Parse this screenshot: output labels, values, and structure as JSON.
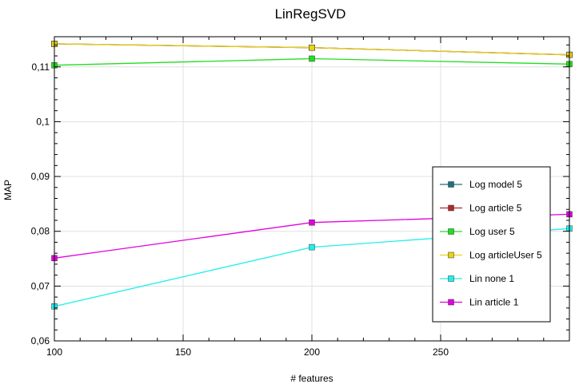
{
  "chart_data": {
    "type": "line",
    "title": "LinRegSVD",
    "xlabel": "# features",
    "ylabel": "MAP",
    "xlim": [
      100,
      300
    ],
    "ylim": [
      0.06,
      0.1155
    ],
    "x_ticks": [
      100,
      150,
      200,
      250
    ],
    "x_tick_labels": [
      "100",
      "150",
      "200",
      "250"
    ],
    "y_ticks": [
      0.06,
      0.07,
      0.08,
      0.09,
      0.1,
      0.11
    ],
    "y_tick_labels": [
      "0,06",
      "0,07",
      "0,08",
      "0,09",
      "0,1",
      "0,11"
    ],
    "grid": true,
    "legend_position": "right",
    "x": [
      100,
      200,
      300
    ],
    "series": [
      {
        "name": "Log model 5",
        "color": "#1f6f80",
        "values": [
          0.1142,
          0.1135,
          0.1122
        ],
        "hidden_behind": true
      },
      {
        "name": "Log article 5",
        "color": "#b02a2a",
        "values": [
          0.1142,
          0.1135,
          0.1122
        ],
        "hidden_behind": true
      },
      {
        "name": "Log user 5",
        "color": "#22dd22",
        "values": [
          0.1103,
          0.1115,
          0.1105
        ]
      },
      {
        "name": "Log articleUser 5",
        "color": "#e8d21a",
        "values": [
          0.1142,
          0.1135,
          0.1122
        ]
      },
      {
        "name": "Lin none 1",
        "color": "#22eeee",
        "values": [
          0.0663,
          0.0771,
          0.0805
        ]
      },
      {
        "name": "Lin article 1",
        "color": "#e000e0",
        "values": [
          0.0751,
          0.0816,
          0.0831
        ]
      }
    ]
  }
}
